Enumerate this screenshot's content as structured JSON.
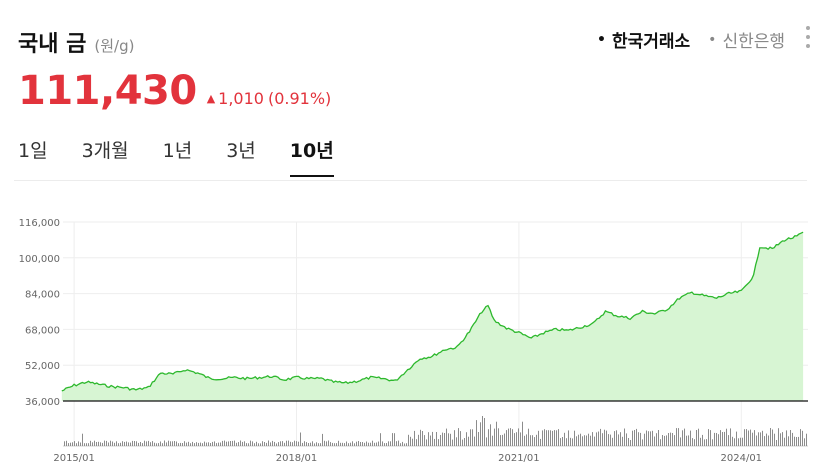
{
  "header": {
    "title": "국내 금",
    "unit": "(원/g)",
    "sources": [
      {
        "label": "한국거래소",
        "active": true
      },
      {
        "label": "신한은행",
        "active": false
      }
    ],
    "more_icon": "vertical-ellipsis-icon"
  },
  "quote": {
    "price": "111,430",
    "direction_icon": "triangle-up-icon",
    "change": "1,010",
    "change_pct": "(0.91%)",
    "color_up": "#e2333c"
  },
  "tabs": [
    {
      "label": "1일",
      "active": false
    },
    {
      "label": "3개월",
      "active": false
    },
    {
      "label": "1년",
      "active": false
    },
    {
      "label": "3년",
      "active": false
    },
    {
      "label": "10년",
      "active": true
    }
  ],
  "chart_data": {
    "type": "area",
    "line_color": "#2db82d",
    "fill_color": "#d7f5d3",
    "grid": true,
    "y_ticks": [
      "116,000",
      "100,000",
      "84,000",
      "68,000",
      "52,000",
      "36,000"
    ],
    "ylim": [
      36000,
      116000
    ],
    "x_ticks": [
      "2015/01",
      "2018/01",
      "2021/01",
      "2024/01"
    ],
    "series": [
      {
        "x": [
          "2014/11",
          "2015/01",
          "2015/03",
          "2015/05",
          "2015/07",
          "2015/09",
          "2015/11",
          "2016/01",
          "2016/03",
          "2016/05",
          "2016/07",
          "2016/09",
          "2016/11",
          "2017/01",
          "2017/03",
          "2017/05",
          "2017/07",
          "2017/09",
          "2017/11",
          "2018/01",
          "2018/03",
          "2018/05",
          "2018/07",
          "2018/09",
          "2018/11",
          "2019/01",
          "2019/03",
          "2019/05",
          "2019/07",
          "2019/09",
          "2019/11",
          "2020/01",
          "2020/03",
          "2020/05",
          "2020/07",
          "2020/08",
          "2020/09",
          "2020/11",
          "2021/01",
          "2021/03",
          "2021/05",
          "2021/07",
          "2021/09",
          "2021/11",
          "2022/01",
          "2022/03",
          "2022/05",
          "2022/07",
          "2022/09",
          "2022/11",
          "2023/01",
          "2023/03",
          "2023/05",
          "2023/07",
          "2023/09",
          "2023/11",
          "2024/01",
          "2024/03",
          "2024/04",
          "2024/06",
          "2024/08",
          "2024/10",
          "2024/11"
        ],
        "values": [
          40500,
          43000,
          44500,
          43500,
          42500,
          42000,
          41000,
          42000,
          48500,
          48000,
          50000,
          48500,
          46000,
          46000,
          46500,
          46000,
          46500,
          47000,
          45500,
          46500,
          46000,
          46000,
          44500,
          44000,
          45000,
          46500,
          46000,
          45000,
          50000,
          55000,
          56000,
          59000,
          60000,
          67000,
          76000,
          78500,
          72000,
          68500,
          66500,
          64000,
          66500,
          68000,
          67500,
          69000,
          70500,
          76000,
          74000,
          73000,
          76000,
          75000,
          77000,
          82000,
          84500,
          83000,
          82000,
          84000,
          85000,
          92000,
          105000,
          104000,
          108000,
          109500,
          111430
        ]
      }
    ],
    "volume_note": "volume bars shown below price"
  }
}
